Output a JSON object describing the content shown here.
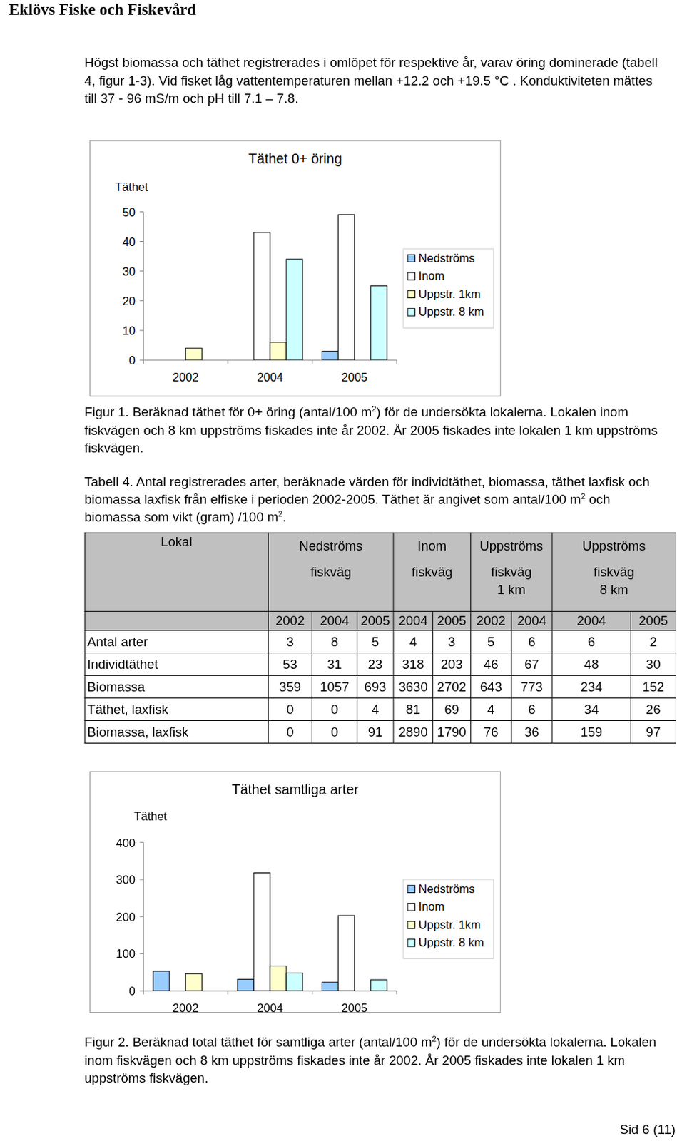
{
  "header": {
    "title": "Eklövs Fiske och Fiskevård"
  },
  "intro": "Högst biomassa och täthet registrerades i omlöpet för respektive år, varav öring dominerade (tabell 4, figur 1-3). Vid fisket låg vattentemperaturen mellan +12.2 och +19.5 °C . Konduktiviteten mättes till 37 - 96 mS/m och pH till 7.1 – 7.8.",
  "chart_data": [
    {
      "type": "bar",
      "title": "Täthet 0+ öring",
      "y_label": "Täthet",
      "categories": [
        "2002",
        "2004",
        "2005"
      ],
      "series": [
        {
          "name": "Nedströms",
          "color": "#99ccff",
          "values": [
            0,
            0,
            3
          ]
        },
        {
          "name": "Inom",
          "color": "#ffffff",
          "values": [
            null,
            43,
            49
          ]
        },
        {
          "name": "Uppstr. 1km",
          "color": "#ffffcc",
          "values": [
            4,
            6,
            null
          ]
        },
        {
          "name": "Uppstr. 8 km",
          "color": "#ccffff",
          "values": [
            null,
            34,
            25
          ]
        }
      ],
      "ylim": [
        0,
        50
      ],
      "yticks": [
        0,
        10,
        20,
        30,
        40,
        50
      ],
      "legend": "right"
    },
    {
      "type": "bar",
      "title": "Täthet samtliga arter",
      "y_label": "Täthet",
      "categories": [
        "2002",
        "2004",
        "2005"
      ],
      "series": [
        {
          "name": "Nedströms",
          "color": "#99ccff",
          "values": [
            53,
            31,
            23
          ]
        },
        {
          "name": "Inom",
          "color": "#ffffff",
          "values": [
            null,
            318,
            203
          ]
        },
        {
          "name": "Uppstr. 1km",
          "color": "#ffffcc",
          "values": [
            46,
            67,
            null
          ]
        },
        {
          "name": "Uppstr. 8 km",
          "color": "#ccffff",
          "values": [
            null,
            48,
            30
          ]
        }
      ],
      "ylim": [
        0,
        400
      ],
      "yticks": [
        0,
        100,
        200,
        300,
        400
      ],
      "legend": "right"
    }
  ],
  "figure_captions": [
    [
      {
        "text": "Figur 1. Beräknad täthet för 0+ öring (antal/100 m"
      },
      {
        "sup": "2"
      },
      {
        "text": ") för de undersökta lokalerna. Lokalen inom fiskvägen och 8 km uppströms fiskades inte år 2002. År 2005 fiskades inte lokalen 1 km uppströms fiskvägen."
      }
    ],
    [
      {
        "text": "Figur 2. Beräknad total täthet för samtliga arter (antal/100 m"
      },
      {
        "sup": "2"
      },
      {
        "text": ") för de undersökta lokalerna. Lokalen inom fiskvägen och 8 km uppströms fiskades inte år 2002. År 2005 fiskades inte lokalen 1 km uppströms fiskvägen."
      }
    ]
  ],
  "table": {
    "caption": [
      {
        "text": "Tabell 4. Antal registrerades arter, beräknade värden för individtäthet, biomassa, täthet laxfisk och biomassa laxfisk från elfiske i perioden 2002-2005. Täthet är angivet som antal/100 m"
      },
      {
        "sup": "2"
      },
      {
        "text": " och biomassa som  vikt (gram) /100 m"
      },
      {
        "sup": "2"
      },
      {
        "text": "."
      }
    ],
    "header_label": "Lokal",
    "groups": [
      {
        "lines": [
          "Nedströms",
          "fiskväg"
        ],
        "years": [
          2002,
          2004,
          2005
        ]
      },
      {
        "lines": [
          "Inom",
          "fiskväg"
        ],
        "years": [
          2004,
          2005
        ]
      },
      {
        "lines": [
          "Uppströms",
          "fiskväg",
          "1 km"
        ],
        "years": [
          2002,
          2004
        ]
      },
      {
        "lines": [
          "Uppströms",
          "fiskväg",
          "8 km"
        ],
        "years": [
          2004,
          2005
        ]
      }
    ],
    "rows": [
      {
        "label": "Antal arter",
        "values": [
          3,
          8,
          5,
          4,
          3,
          5,
          6,
          6,
          2
        ]
      },
      {
        "label": "Individtäthet",
        "values": [
          53,
          31,
          23,
          318,
          203,
          46,
          67,
          48,
          30
        ]
      },
      {
        "label": "Biomassa",
        "values": [
          359,
          1057,
          693,
          3630,
          2702,
          643,
          773,
          234,
          152
        ]
      },
      {
        "label": "Täthet, laxfisk",
        "values": [
          0,
          0,
          4,
          81,
          69,
          4,
          6,
          34,
          26
        ]
      },
      {
        "label": "Biomassa, laxfisk",
        "values": [
          0,
          0,
          91,
          2890,
          1790,
          76,
          36,
          159,
          97
        ]
      }
    ]
  },
  "footer": {
    "page": "Sid 6 (11)"
  }
}
